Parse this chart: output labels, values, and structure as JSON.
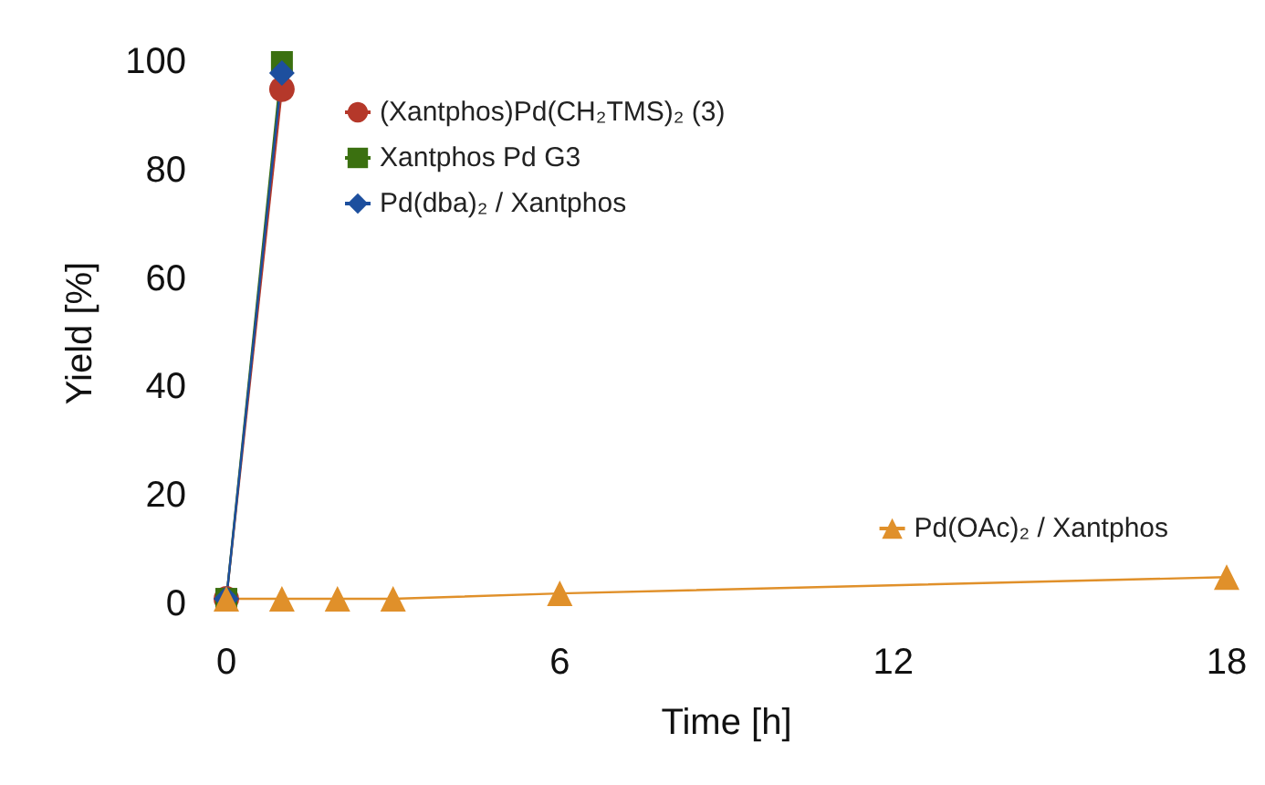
{
  "chart_data": {
    "type": "line",
    "xlabel": "Time [h]",
    "ylabel": "Yield [%]",
    "xlim": [
      0,
      18
    ],
    "xticks": [
      0,
      6,
      12,
      18
    ],
    "ylim": [
      0,
      100
    ],
    "yticks": [
      0,
      20,
      40,
      60,
      80,
      100
    ],
    "grid": false,
    "legend": "top left",
    "series": [
      {
        "name": "(Xantphos)Pd(CH₂TMS)₂ (3)",
        "color": "#b5382a",
        "marker": "circle",
        "x": [
          0,
          1
        ],
        "values": [
          1,
          95
        ]
      },
      {
        "name": "Xantphos Pd G3",
        "color": "#3b7010",
        "marker": "square",
        "x": [
          0,
          1
        ],
        "values": [
          1,
          100
        ]
      },
      {
        "name": "Pd(dba)₂ / Xantphos",
        "color": "#1d4f9e",
        "marker": "diamond",
        "x": [
          0,
          1
        ],
        "values": [
          1,
          98
        ]
      },
      {
        "name": "Pd(OAc)₂ / Xantphos",
        "color": "#e0902a",
        "marker": "triangle",
        "x": [
          0,
          1,
          2,
          3,
          6,
          18
        ],
        "values": [
          1,
          1,
          1,
          1,
          2,
          5
        ]
      }
    ]
  }
}
